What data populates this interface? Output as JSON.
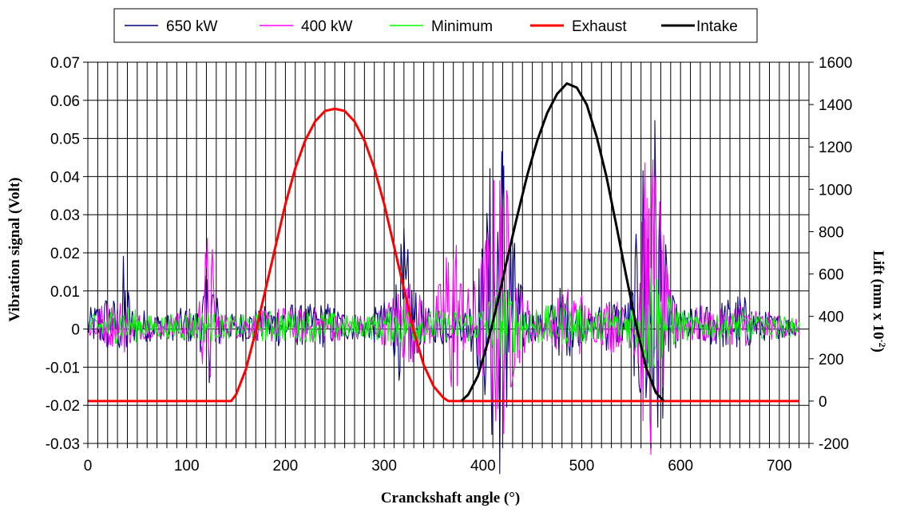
{
  "chart_data": {
    "type": "line",
    "xlabel": "Cranckshaft angle (°)",
    "ylabel": "Vibration signal (Volt)",
    "y2label": {
      "prefix": "Lift (mm x 10",
      "sup": "-2",
      "suffix": ")"
    },
    "xlim": [
      0,
      730
    ],
    "ylim": [
      -0.03,
      0.07
    ],
    "y2lim": [
      -200,
      1600
    ],
    "xticks": [
      0,
      100,
      200,
      300,
      400,
      500,
      600,
      700
    ],
    "yticks": [
      -0.03,
      -0.02,
      -0.01,
      0,
      0.01,
      0.02,
      0.03,
      0.04,
      0.05,
      0.06,
      0.07
    ],
    "ytick_labels": [
      "-0.03",
      "-0.02",
      "-0.01",
      "0",
      "0.01",
      "0.02",
      "0.03",
      "0.04",
      "0.05",
      "0.06",
      "0.07"
    ],
    "y2ticks": [
      -200,
      0,
      200,
      400,
      600,
      800,
      1000,
      1200,
      1400,
      1600
    ],
    "x_grid_step": 10,
    "grid": true,
    "legend_position": "top",
    "series": [
      {
        "name": "650 kW",
        "axis": "left",
        "color": "#000080",
        "x": [
          0,
          10,
          20,
          30,
          36,
          45,
          60,
          80,
          100,
          110,
          115,
          120,
          125,
          130,
          140,
          160,
          180,
          200,
          220,
          240,
          260,
          280,
          300,
          310,
          320,
          325,
          330,
          340,
          350,
          360,
          370,
          380,
          390,
          400,
          405,
          410,
          415,
          420,
          425,
          430,
          440,
          450,
          460,
          470,
          480,
          490,
          500,
          510,
          520,
          530,
          540,
          550,
          555,
          560,
          565,
          570,
          575,
          580,
          585,
          590,
          600,
          620,
          640,
          660,
          680,
          700,
          720
        ],
        "values": [
          0.004,
          0.006,
          0.008,
          0.006,
          0.016,
          0.005,
          0.004,
          0.003,
          0.005,
          0.004,
          0.008,
          0.012,
          0.02,
          0.008,
          0.003,
          0.004,
          0.005,
          0.006,
          0.005,
          0.006,
          0.004,
          0.003,
          0.006,
          0.01,
          0.022,
          0.016,
          0.01,
          0.005,
          0.004,
          0.006,
          0.003,
          0.004,
          0.008,
          0.02,
          0.03,
          0.045,
          0.05,
          0.046,
          0.035,
          0.022,
          0.008,
          0.004,
          0.003,
          0.006,
          0.01,
          0.008,
          0.004,
          0.003,
          0.006,
          0.008,
          0.005,
          0.008,
          0.02,
          0.035,
          0.048,
          0.053,
          0.048,
          0.035,
          0.018,
          0.008,
          0.004,
          0.005,
          0.006,
          0.008,
          0.004,
          0.003,
          0.002
        ]
      },
      {
        "name": "400 kW",
        "axis": "left",
        "color": "#ff00ff",
        "x": [
          0,
          10,
          20,
          30,
          36,
          45,
          60,
          80,
          100,
          110,
          115,
          120,
          123,
          126,
          130,
          140,
          160,
          180,
          200,
          220,
          240,
          260,
          280,
          300,
          310,
          320,
          330,
          340,
          350,
          360,
          365,
          370,
          375,
          380,
          390,
          400,
          405,
          410,
          415,
          420,
          425,
          430,
          440,
          450,
          460,
          470,
          480,
          490,
          500,
          510,
          520,
          530,
          540,
          550,
          555,
          560,
          565,
          570,
          575,
          580,
          585,
          590,
          600,
          620,
          640,
          660,
          680,
          700,
          720
        ],
        "values": [
          0.003,
          0.005,
          0.006,
          0.005,
          0.008,
          0.004,
          0.003,
          0.003,
          0.004,
          0.004,
          0.01,
          0.02,
          0.026,
          0.018,
          0.006,
          0.003,
          0.003,
          0.004,
          0.005,
          0.004,
          0.005,
          0.003,
          0.003,
          0.005,
          0.008,
          0.012,
          0.01,
          0.006,
          0.005,
          0.014,
          0.022,
          0.028,
          0.018,
          0.008,
          0.01,
          0.018,
          0.024,
          0.032,
          0.038,
          0.036,
          0.03,
          0.018,
          0.008,
          0.005,
          0.004,
          0.005,
          0.008,
          0.01,
          0.008,
          0.004,
          0.005,
          0.008,
          0.005,
          0.006,
          0.015,
          0.028,
          0.038,
          0.042,
          0.038,
          0.028,
          0.015,
          0.007,
          0.004,
          0.005,
          0.004,
          0.006,
          0.004,
          0.003,
          0.002
        ]
      },
      {
        "name": "Minimum",
        "axis": "left",
        "color": "#00ff00",
        "x": [
          0,
          20,
          40,
          60,
          80,
          100,
          120,
          140,
          160,
          180,
          200,
          220,
          240,
          260,
          280,
          300,
          320,
          340,
          360,
          380,
          400,
          410,
          420,
          440,
          460,
          480,
          500,
          520,
          540,
          560,
          570,
          580,
          600,
          620,
          640,
          660,
          680,
          700,
          720
        ],
        "values": [
          0.003,
          0.004,
          0.005,
          0.003,
          0.003,
          0.004,
          0.004,
          0.003,
          0.003,
          0.004,
          0.004,
          0.004,
          0.004,
          0.003,
          0.003,
          0.004,
          0.005,
          0.004,
          0.004,
          0.004,
          0.005,
          0.008,
          0.01,
          0.006,
          0.005,
          0.005,
          0.005,
          0.004,
          0.005,
          0.008,
          0.018,
          0.01,
          0.004,
          0.003,
          0.003,
          0.004,
          0.003,
          0.003,
          0.002
        ]
      },
      {
        "name": "Exhaust",
        "axis": "right",
        "color": "#ff0000",
        "x": [
          0,
          145,
          150,
          160,
          170,
          180,
          190,
          200,
          210,
          220,
          230,
          240,
          250,
          260,
          270,
          280,
          290,
          300,
          310,
          320,
          330,
          340,
          350,
          360,
          365,
          380,
          450,
          550,
          650,
          720
        ],
        "values": [
          0,
          0,
          30,
          150,
          330,
          530,
          730,
          930,
          1100,
          1230,
          1320,
          1370,
          1380,
          1370,
          1320,
          1230,
          1100,
          930,
          730,
          530,
          330,
          170,
          70,
          15,
          0,
          0,
          0,
          0,
          0,
          0
        ]
      },
      {
        "name": "Intake",
        "axis": "right",
        "color": "#000000",
        "x": [
          378,
          385,
          395,
          405,
          415,
          425,
          435,
          445,
          455,
          465,
          475,
          485,
          495,
          505,
          515,
          525,
          535,
          545,
          555,
          565,
          575,
          583
        ],
        "values": [
          0,
          30,
          120,
          280,
          470,
          680,
          880,
          1070,
          1230,
          1360,
          1450,
          1500,
          1480,
          1400,
          1250,
          1060,
          830,
          590,
          360,
          160,
          40,
          0
        ]
      }
    ]
  }
}
